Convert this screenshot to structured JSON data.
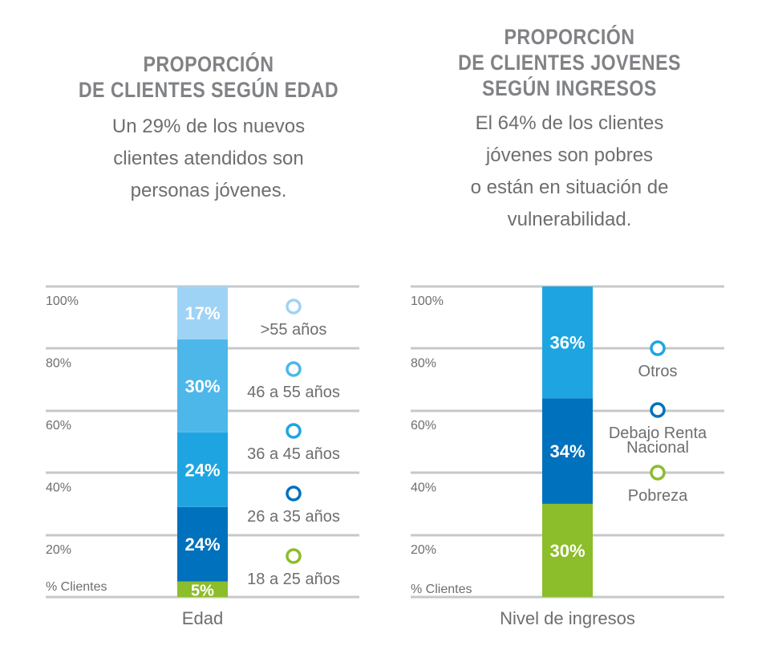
{
  "chart_data": [
    {
      "type": "bar",
      "title_lines": [
        "PROPORCIÓN",
        "DE CLIENTES SEGÚN EDAD"
      ],
      "subtitle_lines": [
        "Un 29% de los nuevos",
        "clientes atendidos son",
        "personas jóvenes."
      ],
      "xlabel": "Edad",
      "ylabel": "% Clientes",
      "yticks": [
        "100%",
        "80%",
        "60%",
        "40%",
        "20%"
      ],
      "ylim": [
        0,
        100
      ],
      "stacked": true,
      "series": [
        {
          "name": "18 a 25 años",
          "value": 5,
          "label": "5%",
          "color": "#8cbd2a"
        },
        {
          "name": "26 a 35 años",
          "value": 24,
          "label": "24%",
          "color": "#0071bc"
        },
        {
          "name": "36 a 45 años",
          "value": 24,
          "label": "24%",
          "color": "#1ea5e1"
        },
        {
          "name": "46 a 55 años",
          "value": 30,
          "label": "30%",
          "color": "#4db7ea"
        },
        {
          "name": ">55 años",
          "value": 17,
          "label": "17%",
          "color": "#9fd3f5"
        }
      ],
      "legend_placement": "right"
    },
    {
      "type": "bar",
      "title_lines": [
        "PROPORCIÓN",
        "DE CLIENTES JOVENES",
        "SEGÚN INGRESOS"
      ],
      "subtitle_lines": [
        "El 64% de los clientes",
        "jóvenes son pobres",
        "o están en situación de",
        "vulnerabilidad."
      ],
      "xlabel": "Nivel de ingresos",
      "ylabel": "% Clientes",
      "yticks": [
        "100%",
        "80%",
        "60%",
        "40%",
        "20%"
      ],
      "ylim": [
        0,
        100
      ],
      "stacked": true,
      "series": [
        {
          "name": "Pobreza",
          "value": 30,
          "label": "30%",
          "color": "#8cbd2a"
        },
        {
          "name_lines": [
            "Debajo Renta",
            "Nacional"
          ],
          "value": 34,
          "label": "34%",
          "color": "#0071bc"
        },
        {
          "name": "Otros",
          "value": 36,
          "label": "36%",
          "color": "#1ea5e1"
        }
      ],
      "legend_placement": "right"
    }
  ]
}
